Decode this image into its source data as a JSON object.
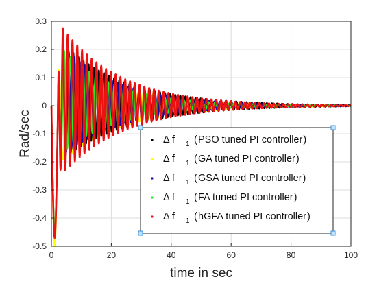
{
  "chart_data": {
    "type": "line",
    "xlabel": "time in sec",
    "ylabel": "Rad/sec",
    "xlim": [
      0,
      100
    ],
    "ylim": [
      -0.5,
      0.3
    ],
    "x_ticks": [
      "0",
      "20",
      "40",
      "60",
      "80",
      "100"
    ],
    "y_ticks": [
      "-0.5",
      "-0.4",
      "-0.3",
      "-0.2",
      "-0.1",
      "0",
      "0.1",
      "0.2",
      "0.3"
    ],
    "grid": true,
    "legend_position": "lower-right",
    "series": [
      {
        "name": "PSO tuned PI controller",
        "legend_symbol": "Δ f",
        "legend_subscript": "1",
        "color": "#000000",
        "peak": 0.22,
        "first_min": -0.45,
        "decay": 0.045,
        "period": 1.7,
        "phase": 0.0
      },
      {
        "name": "GA tuned PI controller",
        "legend_symbol": "Δ f",
        "legend_subscript": "1",
        "color": "#ffff00",
        "peak": 0.23,
        "first_min": -0.5,
        "decay": 0.05,
        "period": 3.2,
        "phase": 0.2
      },
      {
        "name": "GSA tuned PI controller",
        "legend_symbol": "Δ f",
        "legend_subscript": "1",
        "color": "#1010a0",
        "peak": 0.21,
        "first_min": -0.44,
        "decay": 0.05,
        "period": 1.8,
        "phase": 0.1
      },
      {
        "name": "FA tuned PI controller",
        "legend_symbol": "Δ f",
        "legend_subscript": "1",
        "color": "#22ee22",
        "peak": 0.2,
        "first_min": -0.43,
        "decay": 0.055,
        "period": 2.1,
        "phase": 0.3
      },
      {
        "name": "hGFA tuned PI controller",
        "legend_symbol": "Δ f",
        "legend_subscript": "1",
        "color": "#ee1111",
        "peak": 0.28,
        "first_min": -0.47,
        "decay": 0.05,
        "period": 1.6,
        "phase": 0.0
      }
    ]
  }
}
